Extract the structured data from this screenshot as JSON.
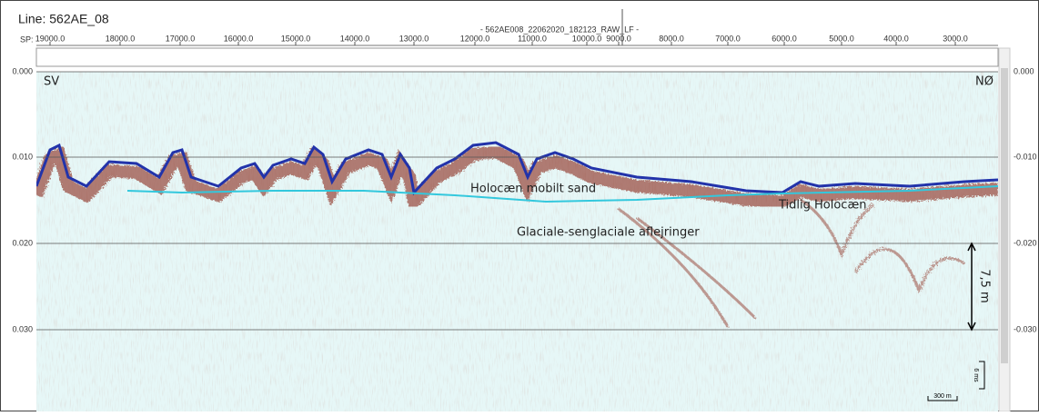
{
  "header": {
    "line": "Line: 562AE_08",
    "sp_label": "SP:",
    "file": "- 562AE008_22062020_182123_RAW_LF -",
    "sp_ticks": [
      "19000.0",
      "18000.0",
      "17000.0",
      "16000.0",
      "15000.0",
      "14000.0",
      "13000.0",
      "12000.0",
      "11000.0",
      "10000.0",
      "9000.0",
      "8000.0",
      "7000.0",
      "6000.0",
      "5000.0",
      "4000.0",
      "3000.0"
    ]
  },
  "axes": {
    "left_ticks": [
      "0.000",
      "0.010",
      "0.020",
      "0.030"
    ],
    "right_ticks": [
      "0.000",
      "-0.010",
      "-0.020",
      "-0.030"
    ]
  },
  "annotations": {
    "left_end": "SV",
    "right_end": "NØ",
    "holocene_sand": "Holocæn mobilt sand",
    "early_holocene": "Tidlig Holocæn",
    "glacial": "Glaciale-senglaciale aflejringer",
    "thickness": "7,5 m",
    "time_scale": "6 ms",
    "distance_scale": "300 m"
  }
}
